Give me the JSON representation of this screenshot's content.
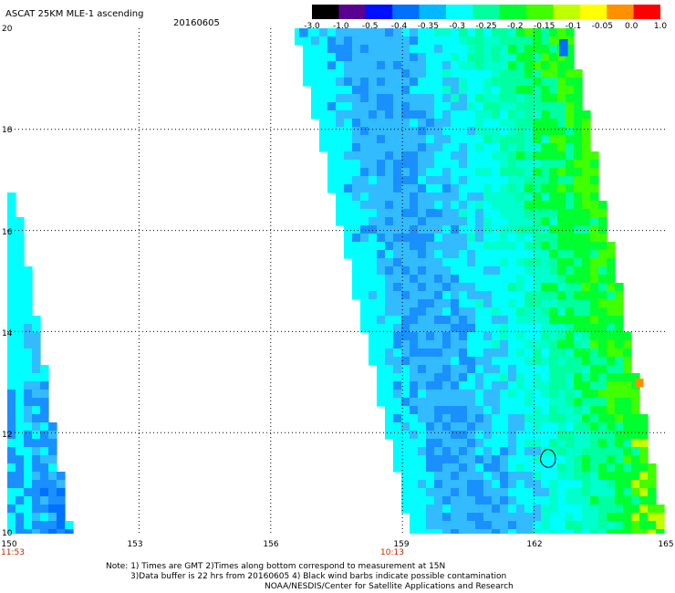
{
  "header": {
    "title": "ASCAT 25KM MLE-1 ascending",
    "date": "20160605"
  },
  "colorbar": {
    "tick_labels": [
      "-3.0",
      "-1.0",
      "-0.5",
      "-0.4",
      "-0.35",
      "-0.3",
      "-0.25",
      "-0.2",
      "-0.15",
      "-0.1",
      "-0.05",
      "0.0",
      "1.0"
    ],
    "colors": [
      "#000000",
      "#5a0090",
      "#0010ff",
      "#0070ff",
      "#00b8ff",
      "#00ffff",
      "#00ffa0",
      "#00ff30",
      "#40ff00",
      "#c0ff00",
      "#ffff00",
      "#ff9000",
      "#ff0000"
    ]
  },
  "map": {
    "lon_range": [
      150,
      165
    ],
    "lat_range": [
      10,
      20
    ],
    "x_tick_labels": [
      "150",
      "153",
      "156",
      "159",
      "162",
      "165"
    ],
    "y_tick_labels": [
      "20",
      "18",
      "16",
      "14",
      "12",
      "10"
    ],
    "pass_times": [
      {
        "label": "11:53",
        "lon": 150
      },
      {
        "label": "10:13",
        "lon": 159
      }
    ],
    "grid": "dotted",
    "contamination_marker": {
      "lon": 162.3,
      "lat": 11.5
    }
  },
  "notes": {
    "line1": "Note: 1) Times are GMT 2)Times along bottom correspond to measurement at 15N",
    "line2": "3)Data buffer is 22 hrs from 20160605 4) Black wind barbs indicate possible contamination",
    "line3": "NOAA/NESDIS/Center for Satellite Applications and Research"
  }
}
